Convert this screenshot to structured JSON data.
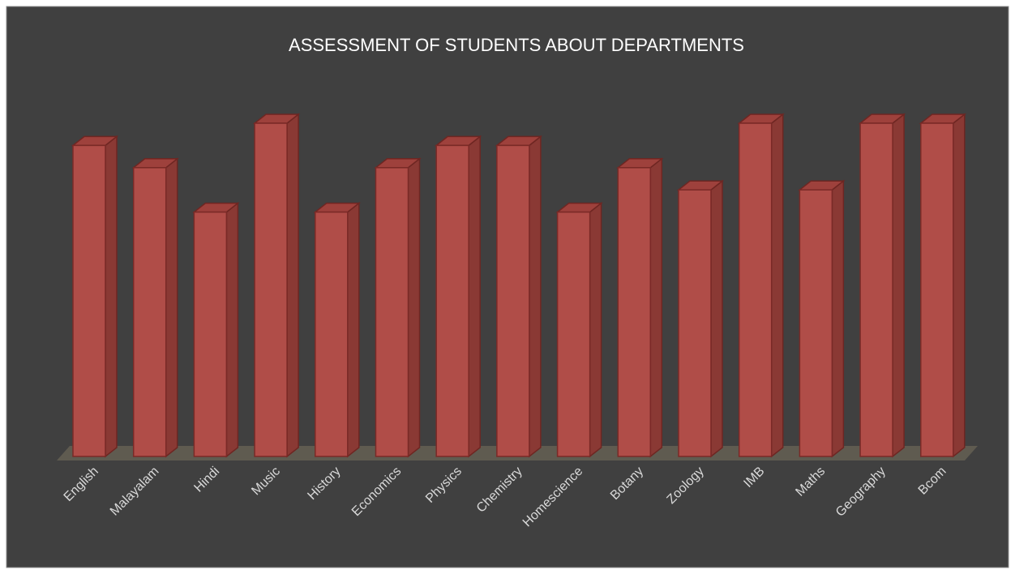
{
  "chart_data": {
    "type": "bar3d",
    "title": "ASSESSMENT OF STUDENTS ABOUT DEPARTMENTS",
    "categories": [
      "English",
      "Malayalam",
      "Hindi",
      "Music",
      "History",
      "Economics",
      "Physics",
      "Chemistry",
      "Homescience",
      "Botany",
      "Zoology",
      "IMB",
      "Maths",
      "Geography",
      "Bcom"
    ],
    "values": [
      14,
      13,
      11,
      15,
      11,
      13,
      14,
      14,
      11,
      13,
      12,
      15,
      12,
      15,
      15
    ],
    "color": "#b04d48"
  }
}
